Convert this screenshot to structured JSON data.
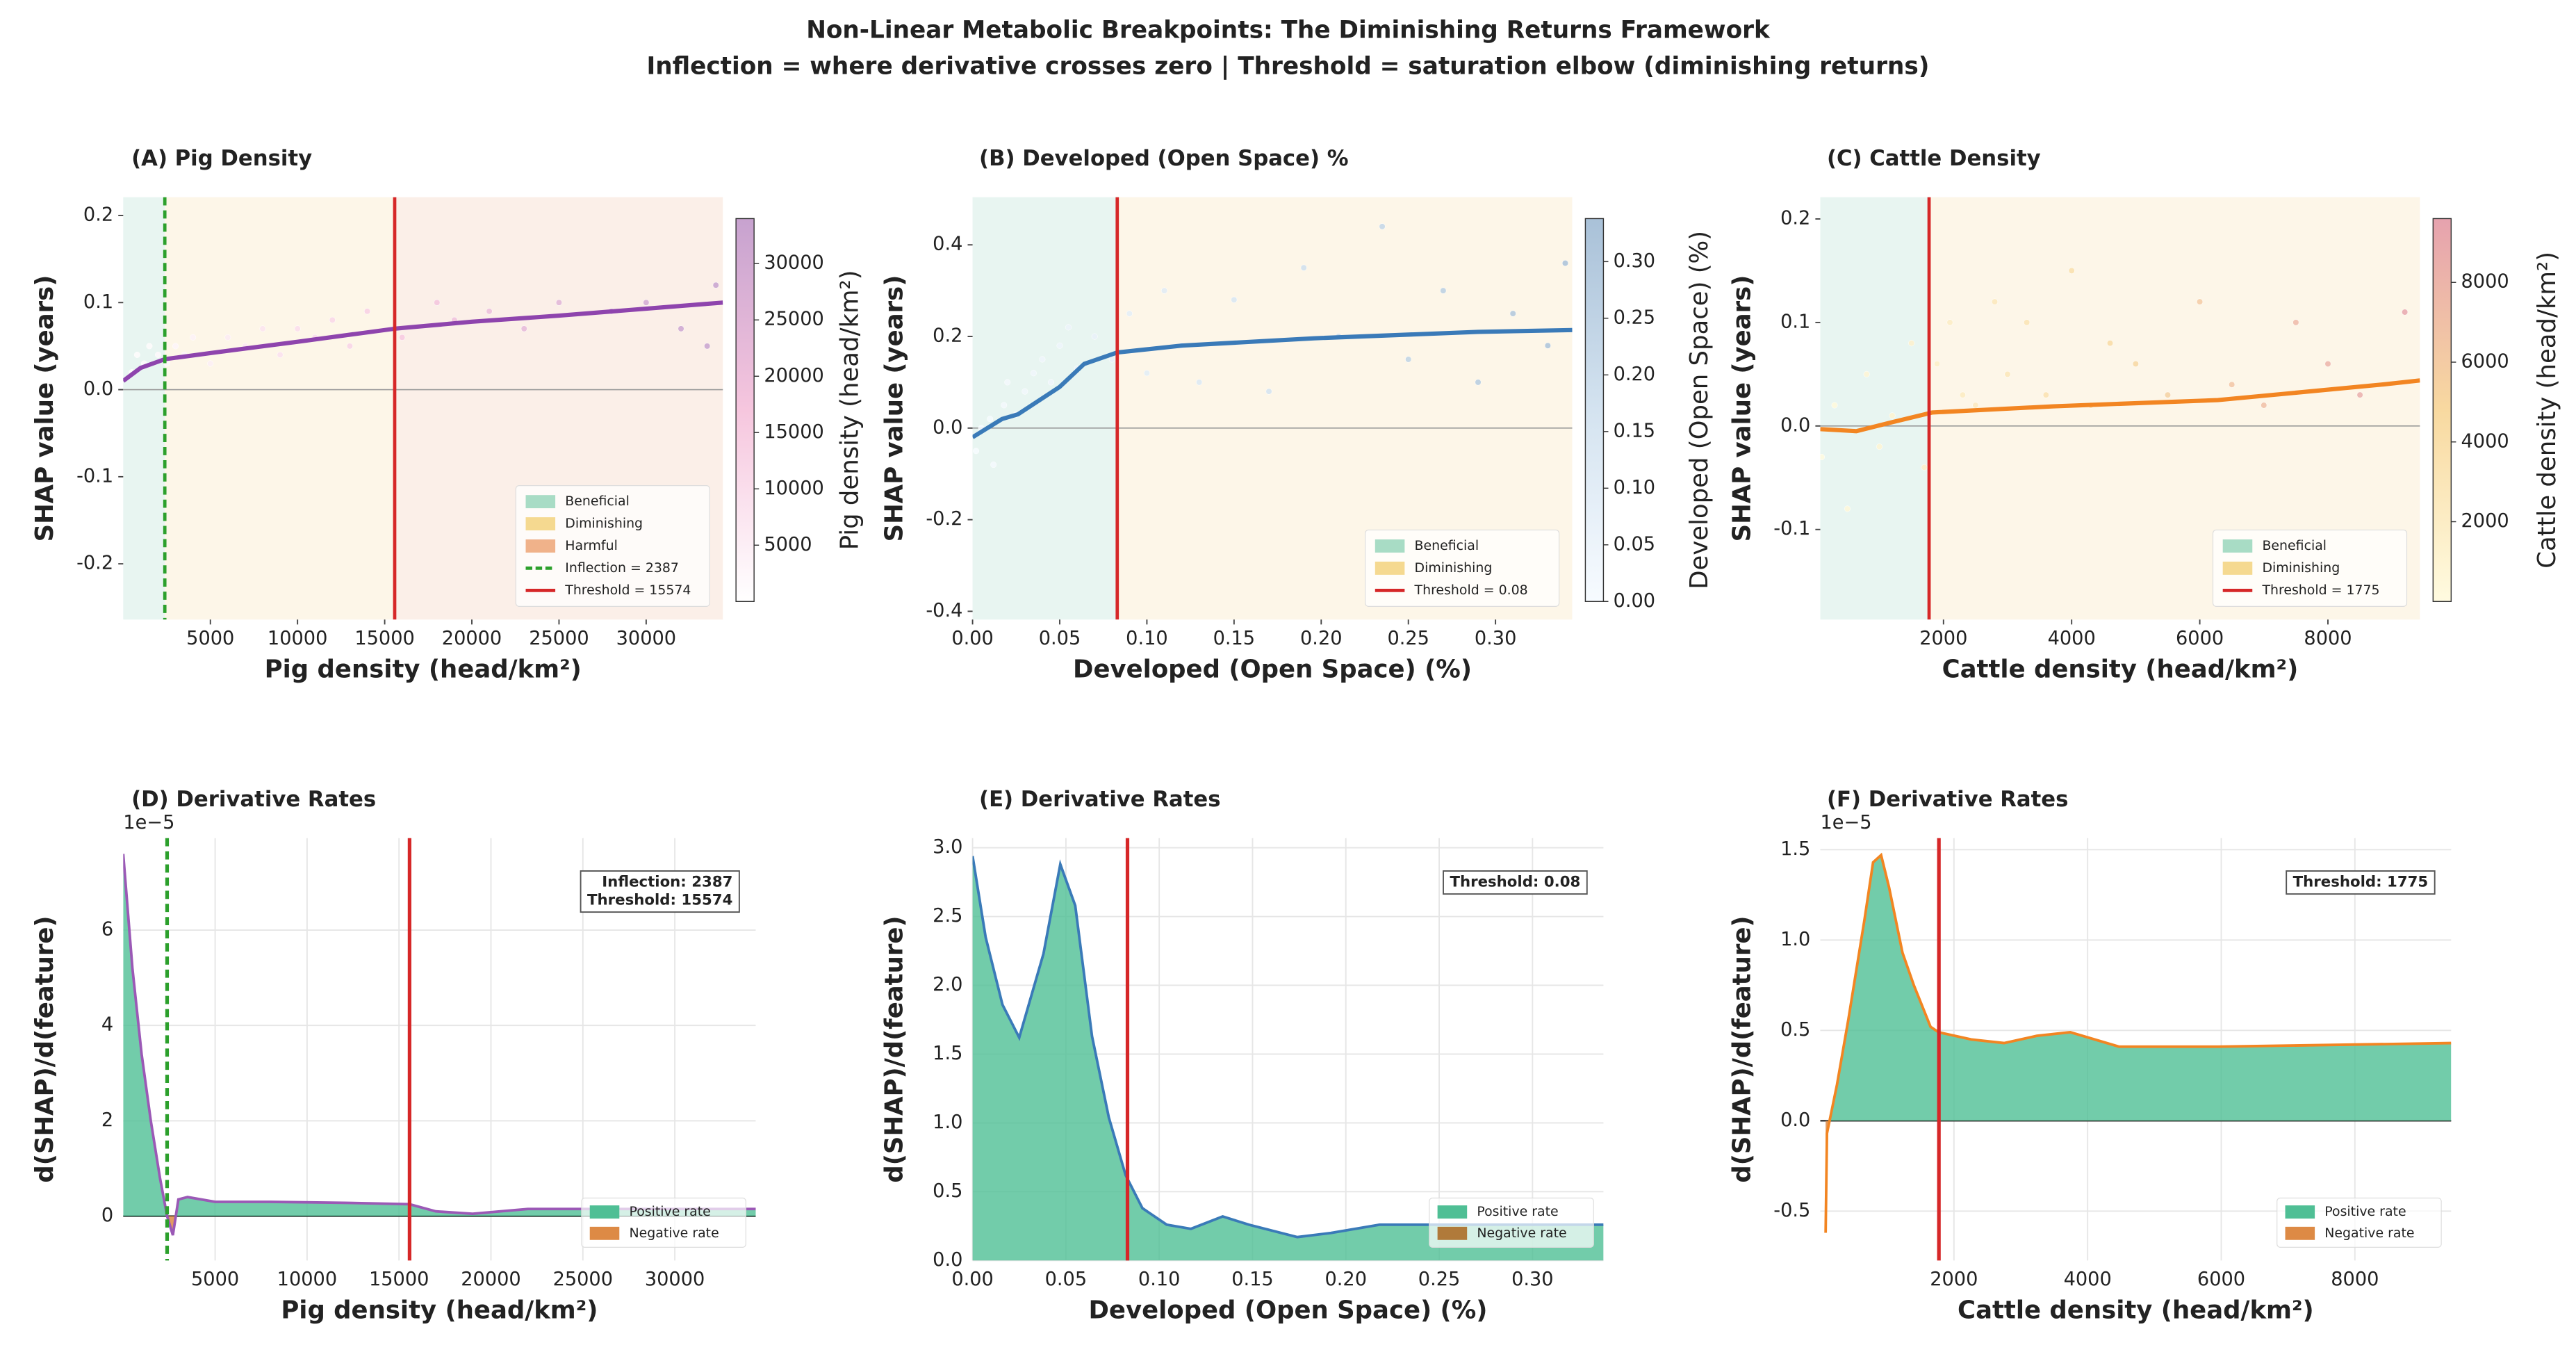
{
  "title": "Non-Linear Metabolic Breakpoints: The Diminishing Returns Framework",
  "subtitle": "Inflection = where derivative crosses zero | Threshold = saturation elbow (diminishing returns)",
  "chart_data": [
    {
      "type": "scatter",
      "panel_title": "(A)  Pig Density",
      "x_label": "Pig density (head/km²)",
      "y_label": "SHAP value  (years)",
      "xlim": [
        0,
        34400
      ],
      "ylim": [
        -0.264,
        0.221
      ],
      "xticks": [
        5000,
        10000,
        15000,
        20000,
        25000,
        30000
      ],
      "yticks": [
        -0.2,
        -0.1,
        {
          "value": 0,
          "label": "0.0"
        },
        0.1,
        0.2
      ],
      "grid": false,
      "legend": "lower right",
      "points": {
        "x": [
          500,
          800,
          1200,
          1500,
          2000,
          2500,
          3000,
          3500,
          4000,
          5000,
          6000,
          7000,
          8000,
          9000,
          10000,
          11000,
          12000,
          13000,
          14000,
          16000,
          18000,
          19000,
          21000,
          23000,
          25000,
          28000,
          30000,
          32000,
          33500,
          34000
        ],
        "values": [
          0.02,
          0.04,
          0.03,
          0.05,
          0.04,
          0.03,
          0.05,
          0.04,
          0.06,
          0.03,
          0.06,
          0.05,
          0.07,
          0.04,
          0.07,
          0.06,
          0.08,
          0.05,
          0.09,
          0.06,
          0.1,
          0.08,
          0.09,
          0.07,
          0.1,
          0.09,
          0.1,
          0.07,
          0.05,
          0.12
        ]
      },
      "trend": {
        "color": "#8e44ad",
        "x": [
          0,
          1000,
          2387,
          5000,
          10000,
          15574,
          20000,
          25000,
          30000,
          34400
        ],
        "values": [
          0.01,
          0.025,
          0.035,
          0.042,
          0.055,
          0.07,
          0.078,
          0.085,
          0.093,
          0.1
        ]
      },
      "zones": [
        {
          "name": "Beneficial",
          "color": "#a8dcc5",
          "background": "#e8f5f1"
        },
        {
          "name": "Diminishing",
          "color": "#f5d990",
          "background": "#fdf6e8"
        },
        {
          "name": "Harmful",
          "color": "#f0b28a",
          "background": "#fbefe8"
        }
      ],
      "vlines": [
        {
          "value": 2387,
          "label": "Inflection = 2387",
          "color": "#2ca02c",
          "style": "dashed"
        },
        {
          "value": 15574,
          "label": "Threshold = 15574",
          "color": "#d62728",
          "style": "solid"
        }
      ],
      "colorbar": {
        "label": "Pig density (head/km²)",
        "clim": [
          0,
          34000
        ],
        "ticks": [
          5000,
          10000,
          15000,
          20000,
          25000,
          30000
        ],
        "colors": [
          "#ffffff",
          "#f6c6de",
          "#c7a2cf"
        ]
      }
    },
    {
      "type": "scatter",
      "panel_title": "(B)  Developed (Open Space) %",
      "x_label": "Developed (Open Space) (%)",
      "y_label": "SHAP value  (years)",
      "xlim": [
        0,
        0.344
      ],
      "ylim": [
        -0.418,
        0.504
      ],
      "xticks": [
        {
          "value": 0,
          "label": "0.00"
        },
        0.05,
        {
          "value": 0.1,
          "label": "0.10"
        },
        0.15,
        {
          "value": 0.2,
          "label": "0.20"
        },
        0.25,
        {
          "value": 0.3,
          "label": "0.30"
        }
      ],
      "yticks": [
        -0.4,
        -0.2,
        {
          "value": 0,
          "label": "0.0"
        },
        0.2,
        0.4
      ],
      "grid": false,
      "legend": "lower right",
      "points": {
        "x": [
          0.002,
          0.005,
          0.01,
          0.012,
          0.018,
          0.02,
          0.025,
          0.03,
          0.035,
          0.04,
          0.045,
          0.05,
          0.055,
          0.06,
          0.07,
          0.08,
          0.09,
          0.1,
          0.11,
          0.12,
          0.13,
          0.15,
          0.17,
          0.19,
          0.21,
          0.235,
          0.25,
          0.27,
          0.29,
          0.31,
          0.33,
          0.34
        ],
        "values": [
          -0.05,
          0.0,
          0.02,
          -0.08,
          0.05,
          0.1,
          0.03,
          0.08,
          0.12,
          0.15,
          0.1,
          0.18,
          0.22,
          0.13,
          0.2,
          0.15,
          0.25,
          0.12,
          0.3,
          0.18,
          0.1,
          0.28,
          0.08,
          0.35,
          0.2,
          0.44,
          0.15,
          0.3,
          0.1,
          0.25,
          0.18,
          0.36
        ]
      },
      "trend": {
        "color": "#3a7ab8",
        "x": [
          0,
          0.017,
          0.026,
          0.05,
          0.064,
          0.083,
          0.12,
          0.196,
          0.29,
          0.344
        ],
        "values": [
          -0.02,
          0.02,
          0.03,
          0.09,
          0.14,
          0.165,
          0.18,
          0.196,
          0.21,
          0.214
        ]
      },
      "zones": [
        {
          "name": "Beneficial",
          "color": "#a8dcc5",
          "background": "#e8f5f1"
        },
        {
          "name": "Diminishing",
          "color": "#f5d990",
          "background": "#fdf6e8"
        }
      ],
      "vlines": [
        {
          "value": 0.083,
          "label": "Threshold = 0.08",
          "color": "#d62728",
          "style": "solid"
        }
      ],
      "colorbar": {
        "label": "Developed (Open Space) (%)",
        "clim": [
          0,
          0.338
        ],
        "ticks": [
          {
            "value": 0,
            "label": "0.00"
          },
          0.05,
          {
            "value": 0.1,
            "label": "0.10"
          },
          0.15,
          {
            "value": 0.2,
            "label": "0.20"
          },
          0.25,
          {
            "value": 0.3,
            "label": "0.30"
          }
        ],
        "colors": [
          "#f7fbff",
          "#d4e3f0",
          "#a9c1d8"
        ]
      }
    },
    {
      "type": "scatter",
      "panel_title": "(C)  Cattle Density",
      "x_label": "Cattle density (head/km²)",
      "y_label": "SHAP value  (years)",
      "xlim": [
        77,
        9436
      ],
      "ylim": [
        -0.187,
        0.221
      ],
      "xticks": [
        2000,
        4000,
        6000,
        8000
      ],
      "yticks": [
        -0.1,
        {
          "value": 0,
          "label": "0.0"
        },
        0.1,
        0.2
      ],
      "grid": false,
      "legend": "lower right",
      "points": {
        "x": [
          100,
          300,
          500,
          800,
          1000,
          1200,
          1500,
          1700,
          1900,
          2100,
          2300,
          2500,
          2800,
          3000,
          3300,
          3600,
          4000,
          4300,
          4600,
          5000,
          5500,
          6000,
          6500,
          7000,
          7500,
          8000,
          8500,
          9200
        ],
        "values": [
          -0.03,
          0.02,
          -0.08,
          0.05,
          -0.02,
          0.01,
          0.08,
          -0.04,
          0.06,
          0.1,
          0.03,
          0.02,
          0.12,
          0.05,
          0.1,
          0.03,
          0.15,
          0.02,
          0.08,
          0.06,
          0.03,
          0.12,
          0.04,
          0.02,
          0.1,
          0.06,
          0.03,
          0.11
        ]
      },
      "trend": {
        "color": "#f28522",
        "x": [
          77,
          641,
          1154,
          1821,
          3718,
          6282,
          8846,
          9436
        ],
        "values": [
          -0.003,
          -0.005,
          0.003,
          0.013,
          0.019,
          0.025,
          0.04,
          0.044
        ]
      },
      "zones": [
        {
          "name": "Beneficial",
          "color": "#a8dcc5",
          "background": "#e8f5f1"
        },
        {
          "name": "Diminishing",
          "color": "#f5d990",
          "background": "#fdf6e8"
        }
      ],
      "vlines": [
        {
          "value": 1775,
          "label": "Threshold = 1775",
          "color": "#d62728",
          "style": "solid"
        }
      ],
      "colorbar": {
        "label": "Cattle density (head/km²)",
        "clim": [
          0,
          9600
        ],
        "ticks": [
          2000,
          4000,
          6000,
          8000
        ],
        "colors": [
          "#fffbe0",
          "#f8d9a0",
          "#e6a2ae"
        ]
      }
    },
    {
      "type": "area",
      "panel_title": "(D)  Derivative Rates",
      "x_label": "Pig density (head/km²)",
      "y_label": "d(SHAP)/d(feature)",
      "y_offset_label": "1e−5",
      "xlim": [
        0,
        34400
      ],
      "ylim": [
        -0.93,
        7.93
      ],
      "xticks": [
        5000,
        10000,
        15000,
        20000,
        25000,
        30000
      ],
      "yticks": [
        0,
        2,
        4,
        6
      ],
      "grid": true,
      "legend": "lower right",
      "x": [
        0,
        500,
        1000,
        1500,
        2000,
        2387,
        2700,
        3000,
        3500,
        5000,
        8000,
        12000,
        15574,
        17000,
        19000,
        22000,
        26000,
        30000,
        34400
      ],
      "values": [
        7.6,
        5.2,
        3.4,
        2.0,
        0.8,
        0,
        -0.4,
        0.35,
        0.4,
        0.3,
        0.3,
        0.28,
        0.25,
        0.1,
        0.05,
        0.15,
        0.15,
        0.15,
        0.15
      ],
      "line_color": "#9b59b6",
      "positive": {
        "name": "Positive rate",
        "color": "#4fbf95"
      },
      "negative": {
        "name": "Negative rate",
        "color": "#dd8a45"
      },
      "vlines": [
        {
          "value": 2387,
          "color": "#2ca02c",
          "style": "dashed"
        },
        {
          "value": 15574,
          "color": "#d62728",
          "style": "solid"
        }
      ],
      "annotation": [
        "Inflection: 2387",
        "Threshold: 15574"
      ]
    },
    {
      "type": "area",
      "panel_title": "(E)  Derivative Rates",
      "x_label": "Developed (Open Space) (%)",
      "y_label": "d(SHAP)/d(feature)",
      "xlim": [
        0,
        0.338
      ],
      "ylim": [
        0,
        3.07
      ],
      "xticks": [
        {
          "value": 0,
          "label": "0.00"
        },
        0.05,
        {
          "value": 0.1,
          "label": "0.10"
        },
        0.15,
        {
          "value": 0.2,
          "label": "0.20"
        },
        0.25,
        {
          "value": 0.3,
          "label": "0.30"
        }
      ],
      "yticks": [
        {
          "value": 0,
          "label": "0.0"
        },
        0.5,
        {
          "value": 1,
          "label": "1.0"
        },
        1.5,
        {
          "value": 2,
          "label": "2.0"
        },
        2.5,
        {
          "value": 3,
          "label": "3.0"
        }
      ],
      "grid": true,
      "legend": "lower right",
      "x": [
        0,
        0.007,
        0.016,
        0.025,
        0.038,
        0.047,
        0.055,
        0.064,
        0.073,
        0.082,
        0.091,
        0.104,
        0.117,
        0.134,
        0.148,
        0.174,
        0.192,
        0.218,
        0.253,
        0.338
      ],
      "values": [
        2.94,
        2.35,
        1.86,
        1.62,
        2.23,
        2.88,
        2.58,
        1.63,
        1.04,
        0.62,
        0.38,
        0.26,
        0.23,
        0.32,
        0.26,
        0.17,
        0.2,
        0.26,
        0.26,
        0.26
      ],
      "line_color": "#3a7ab8",
      "positive": {
        "name": "Positive rate",
        "color": "#4fbf95"
      },
      "negative": {
        "name": "Negative rate",
        "color": "#b07a3a"
      },
      "vlines": [
        {
          "value": 0.083,
          "color": "#d62728",
          "style": "solid"
        }
      ],
      "annotation": [
        "Threshold: 0.08"
      ]
    },
    {
      "type": "area",
      "panel_title": "(F)  Derivative Rates",
      "x_label": "Cattle density (head/km²)",
      "y_label": "d(SHAP)/d(feature)",
      "y_offset_label": "1e−5",
      "xlim": [
        0,
        9440
      ],
      "ylim": [
        -0.773,
        1.564
      ],
      "xticks": [
        2000,
        4000,
        6000,
        8000
      ],
      "yticks": [
        -0.5,
        {
          "value": 0,
          "label": "0.0"
        },
        0.5,
        {
          "value": 1,
          "label": "1.0"
        },
        1.5
      ],
      "grid": true,
      "legend": "lower right",
      "x": [
        80,
        100,
        250,
        420,
        660,
        790,
        910,
        1030,
        1230,
        1400,
        1650,
        1770,
        2260,
        2750,
        3240,
        3740,
        4470,
        5950,
        9440
      ],
      "values": [
        -0.62,
        -0.07,
        0.2,
        0.56,
        1.11,
        1.43,
        1.47,
        1.29,
        0.93,
        0.75,
        0.52,
        0.49,
        0.45,
        0.43,
        0.47,
        0.49,
        0.41,
        0.41,
        0.43
      ],
      "line_color": "#f28522",
      "positive": {
        "name": "Positive rate",
        "color": "#4fbf95"
      },
      "negative": {
        "name": "Negative rate",
        "color": "#dd8a45"
      },
      "vlines": [
        {
          "value": 1775,
          "color": "#d62728",
          "style": "solid"
        }
      ],
      "annotation": [
        "Threshold: 1775"
      ]
    }
  ]
}
